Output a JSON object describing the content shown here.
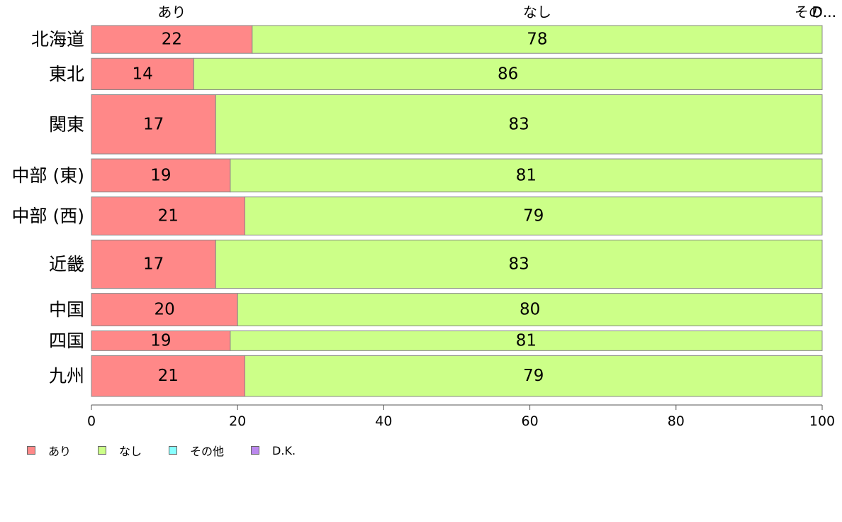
{
  "chart_data": {
    "type": "bar",
    "orientation": "horizontal",
    "stacked": true,
    "title": "",
    "xlabel": "",
    "ylabel": "",
    "xlim": [
      0,
      100
    ],
    "x_ticks": [
      "0",
      "20",
      "40",
      "60",
      "80",
      "100"
    ],
    "categories": [
      "北海道",
      "東北",
      "関東",
      "中部 (東)",
      "中部 (西)",
      "近畿",
      "中国",
      "四国",
      "九州"
    ],
    "relative_weights": [
      1.0,
      1.13,
      2.13,
      1.19,
      1.37,
      1.74,
      1.17,
      0.71,
      1.47
    ],
    "series": [
      {
        "name": "あり",
        "color": "#ff8888",
        "values": [
          22,
          14,
          17,
          19,
          21,
          17,
          20,
          19,
          21
        ]
      },
      {
        "name": "なし",
        "color": "#ccff88",
        "values": [
          78,
          86,
          83,
          81,
          79,
          83,
          80,
          81,
          79
        ]
      },
      {
        "name": "その他",
        "color": "#88ffff",
        "values": [
          0,
          0,
          0,
          0,
          0,
          0,
          0,
          0,
          0
        ]
      },
      {
        "name": "D.K.",
        "color": "#bb88ee",
        "values": [
          0,
          0,
          0,
          0,
          0,
          0,
          0,
          0,
          0
        ]
      }
    ],
    "top_labels": [
      "あり",
      "なし",
      "その...",
      "D..."
    ],
    "legend": {
      "placement": "bottom-left"
    },
    "grid": false
  }
}
